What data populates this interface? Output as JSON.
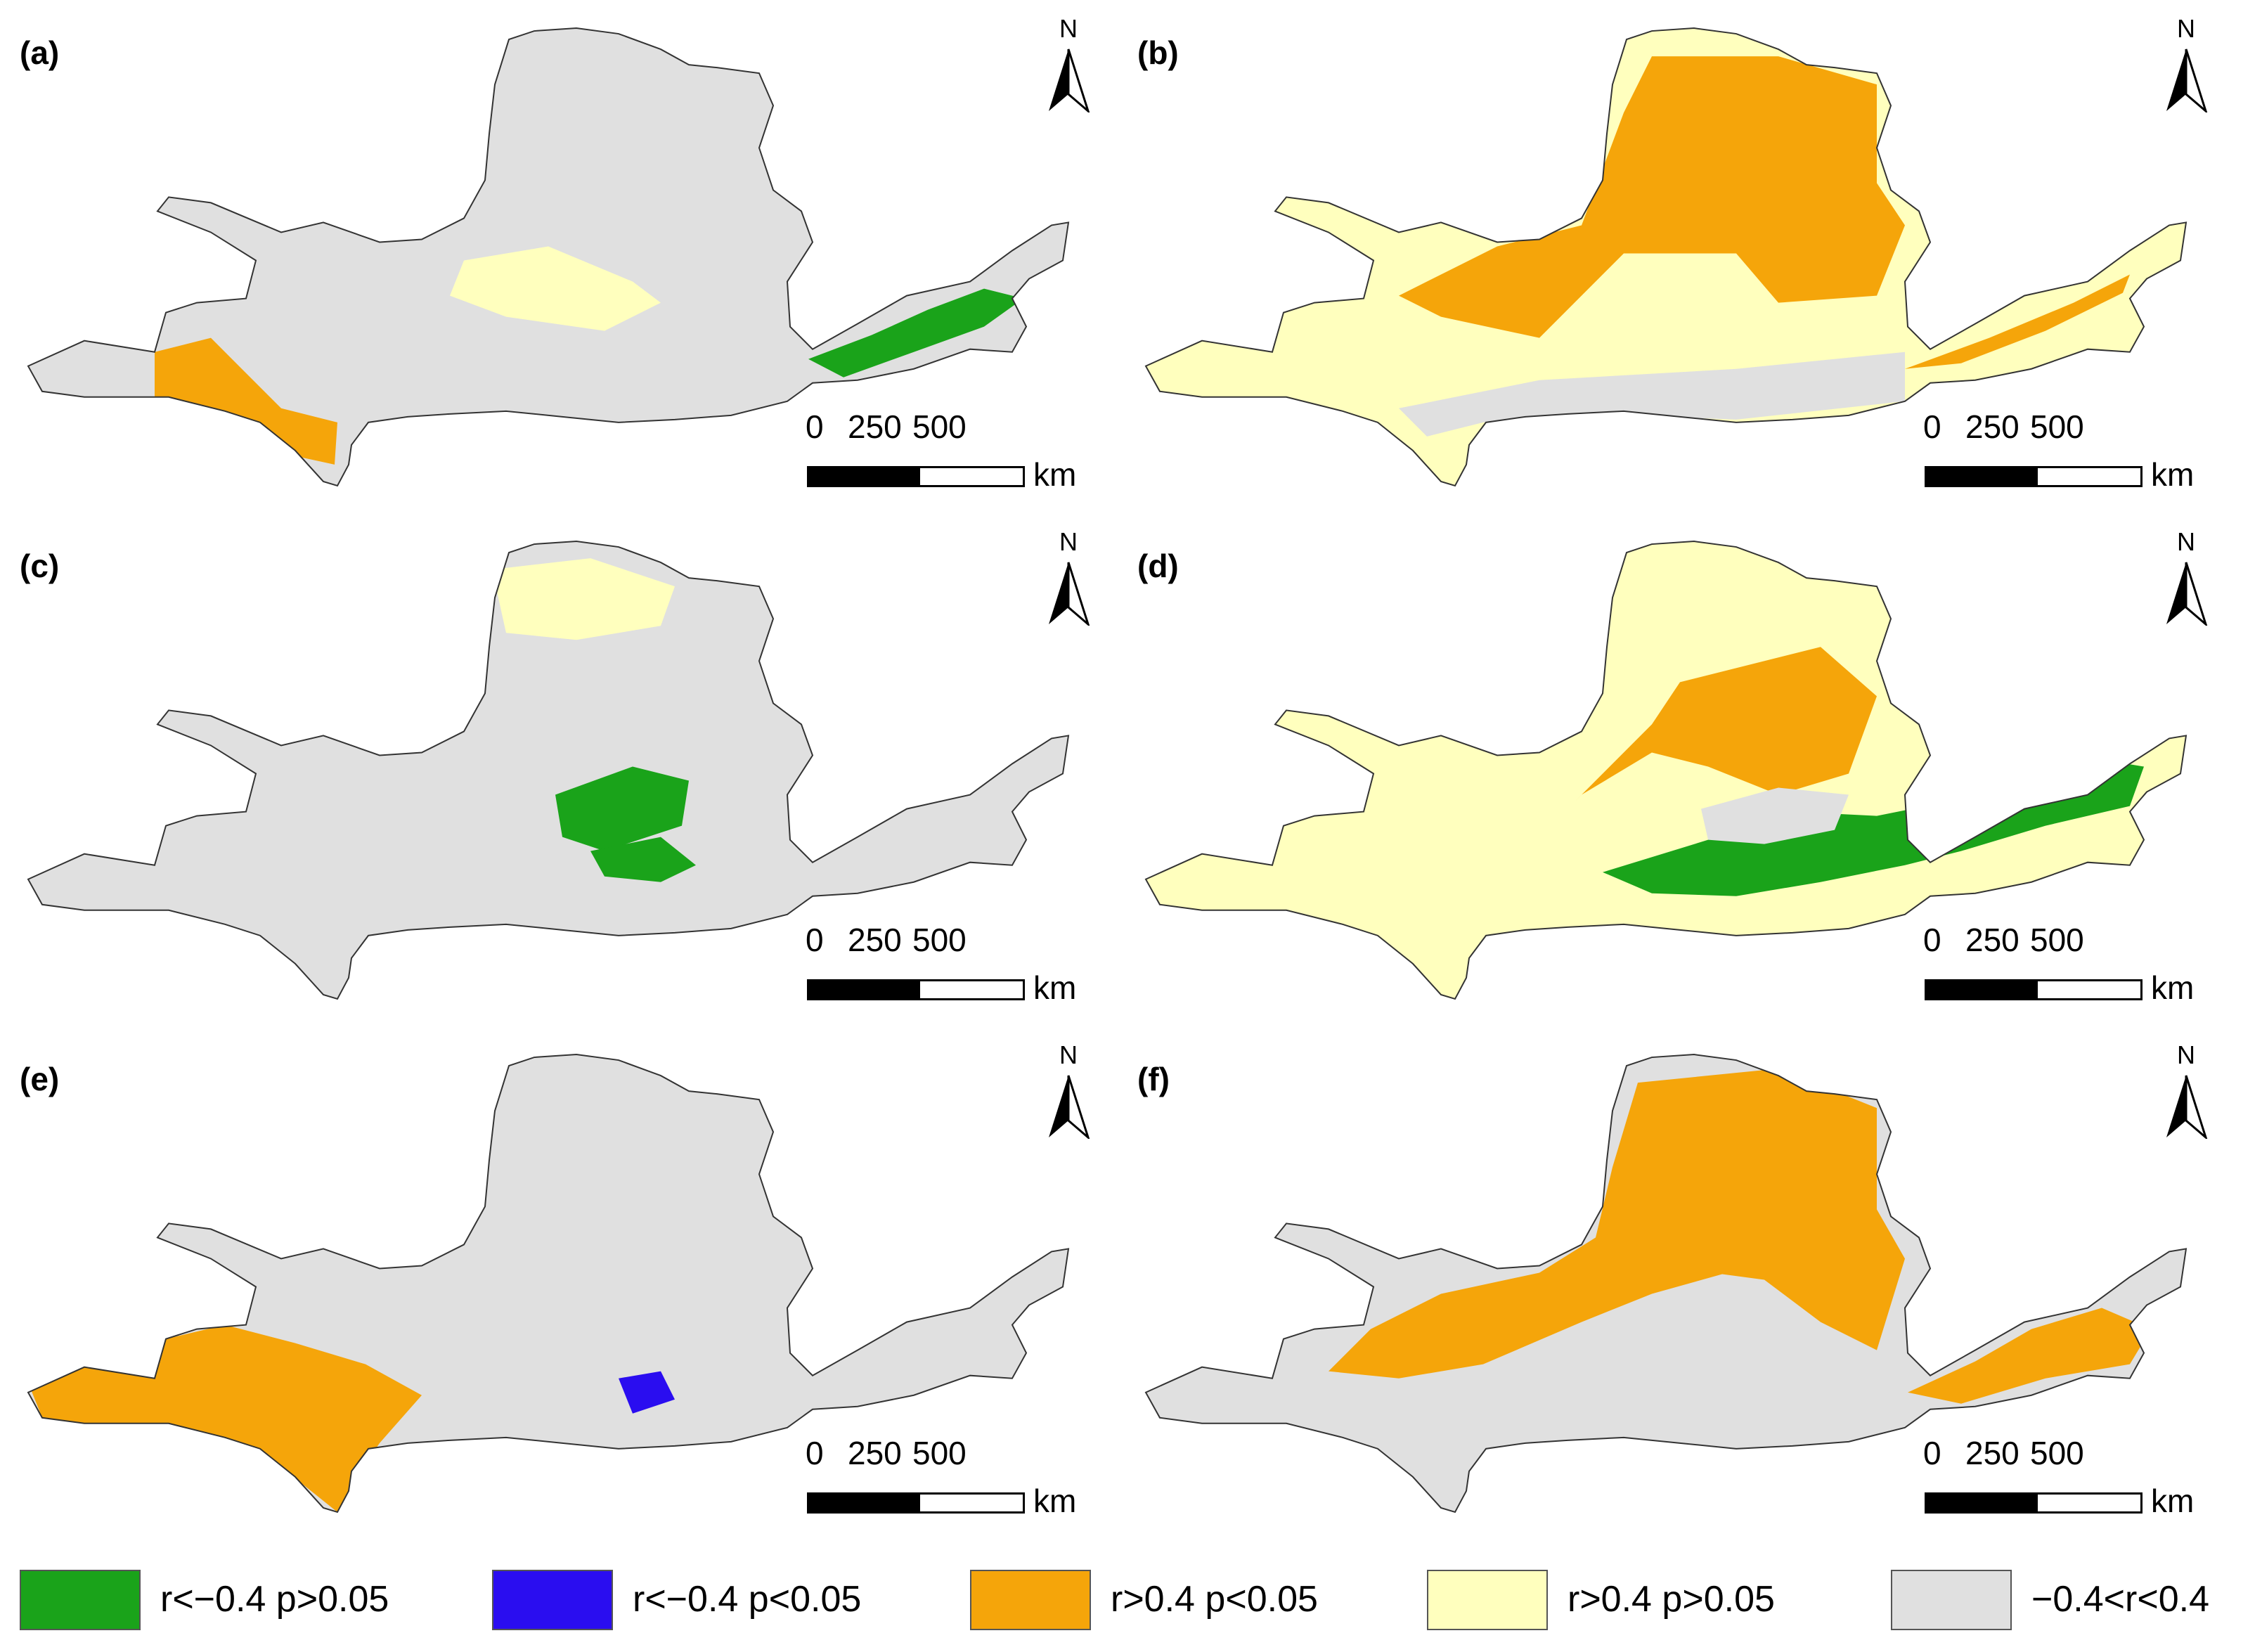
{
  "legend": [
    {
      "label": "r<−0.4  p>0.05",
      "color": "#1aa31a"
    },
    {
      "label": "r<−0.4   p<0.05",
      "color": "#2a0df0"
    },
    {
      "label": "r>0.4   p<0.05",
      "color": "#f5a50a"
    },
    {
      "label": "r>0.4   p>0.05",
      "color": "#ffffbe"
    },
    {
      "label": "−0.4<r<0.4",
      "color": "#e0e0e0"
    }
  ],
  "scale_bar": {
    "ticks": [
      "0",
      "250",
      "500"
    ],
    "unit": "km"
  },
  "north_label": "N",
  "panels": [
    {
      "label": "(a)",
      "base": "#e0e0e0",
      "patches": [
        {
          "color": "#ffffbe",
          "shape": "a"
        },
        {
          "color": "#1aa31a",
          "shape": "b"
        },
        {
          "color": "#f5a50a",
          "shape": "c"
        }
      ]
    },
    {
      "label": "(b)",
      "base": "#ffffbe",
      "patches": [
        {
          "color": "#f5a50a",
          "shape": "d"
        },
        {
          "color": "#e0e0e0",
          "shape": "e"
        },
        {
          "color": "#f5a50a",
          "shape": "f"
        }
      ]
    },
    {
      "label": "(c)",
      "base": "#e0e0e0",
      "patches": [
        {
          "color": "#ffffbe",
          "shape": "g"
        },
        {
          "color": "#1aa31a",
          "shape": "h"
        },
        {
          "color": "#1aa31a",
          "shape": "i"
        }
      ]
    },
    {
      "label": "(d)",
      "base": "#ffffbe",
      "patches": [
        {
          "color": "#f5a50a",
          "shape": "j"
        },
        {
          "color": "#1aa31a",
          "shape": "k"
        },
        {
          "color": "#e0e0e0",
          "shape": "l"
        }
      ]
    },
    {
      "label": "(e)",
      "base": "#e0e0e0",
      "patches": [
        {
          "color": "#f5a50a",
          "shape": "m"
        },
        {
          "color": "#2a0df0",
          "shape": "n"
        }
      ]
    },
    {
      "label": "(f)",
      "base": "#e0e0e0",
      "patches": [
        {
          "color": "#f5a50a",
          "shape": "o"
        },
        {
          "color": "#f5a50a",
          "shape": "p"
        }
      ]
    }
  ]
}
